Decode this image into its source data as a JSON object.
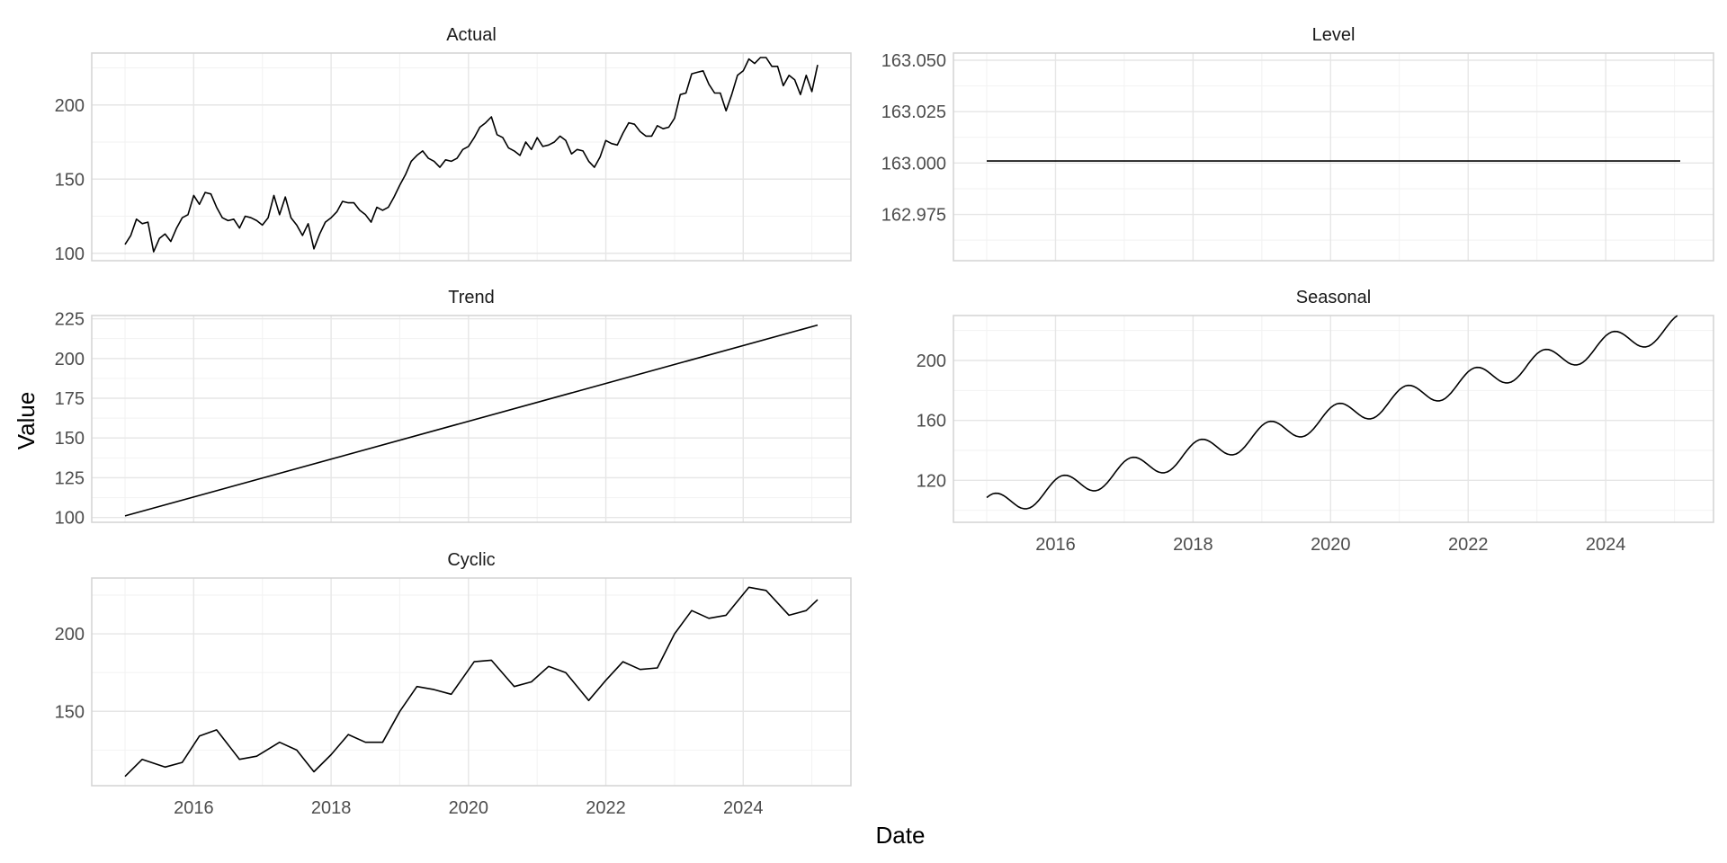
{
  "chart_data": {
    "type": "line",
    "layout": "facet_wrap",
    "xlabel": "Date",
    "ylabel": "Value",
    "x_tick_labels": [
      "2016",
      "2018",
      "2020",
      "2022",
      "2024"
    ],
    "grid": true,
    "panels": [
      {
        "title": "Actual",
        "y_ticks": [
          100,
          150,
          200
        ],
        "ylim": [
          95,
          235
        ],
        "points": [
          [
            "2015-01",
            106
          ],
          [
            "2015-02",
            112
          ],
          [
            "2015-03",
            123
          ],
          [
            "2015-04",
            120
          ],
          [
            "2015-05",
            121
          ],
          [
            "2015-06",
            101
          ],
          [
            "2015-07",
            110
          ],
          [
            "2015-08",
            113
          ],
          [
            "2015-09",
            108
          ],
          [
            "2015-10",
            117
          ],
          [
            "2015-11",
            124
          ],
          [
            "2015-12",
            126
          ],
          [
            "2016-01",
            139
          ],
          [
            "2016-02",
            133
          ],
          [
            "2016-03",
            141
          ],
          [
            "2016-04",
            140
          ],
          [
            "2016-05",
            131
          ],
          [
            "2016-06",
            124
          ],
          [
            "2016-07",
            122
          ],
          [
            "2016-08",
            123
          ],
          [
            "2016-09",
            117
          ],
          [
            "2016-10",
            125
          ],
          [
            "2016-11",
            124
          ],
          [
            "2016-12",
            122
          ],
          [
            "2017-01",
            119
          ],
          [
            "2017-02",
            124
          ],
          [
            "2017-03",
            139
          ],
          [
            "2017-04",
            126
          ],
          [
            "2017-05",
            138
          ],
          [
            "2017-06",
            124
          ],
          [
            "2017-07",
            119
          ],
          [
            "2017-08",
            112
          ],
          [
            "2017-09",
            120
          ],
          [
            "2017-10",
            103
          ],
          [
            "2017-11",
            113
          ],
          [
            "2017-12",
            121
          ],
          [
            "2018-01",
            124
          ],
          [
            "2018-02",
            128
          ],
          [
            "2018-03",
            135
          ],
          [
            "2018-04",
            134
          ],
          [
            "2018-05",
            134
          ],
          [
            "2018-06",
            129
          ],
          [
            "2018-07",
            126
          ],
          [
            "2018-08",
            121
          ],
          [
            "2018-09",
            131
          ],
          [
            "2018-10",
            129
          ],
          [
            "2018-11",
            131
          ],
          [
            "2018-12",
            138
          ],
          [
            "2019-01",
            146
          ],
          [
            "2019-02",
            153
          ],
          [
            "2019-03",
            162
          ],
          [
            "2019-04",
            166
          ],
          [
            "2019-05",
            169
          ],
          [
            "2019-06",
            164
          ],
          [
            "2019-07",
            162
          ],
          [
            "2019-08",
            158
          ],
          [
            "2019-09",
            163
          ],
          [
            "2019-10",
            162
          ],
          [
            "2019-11",
            164
          ],
          [
            "2019-12",
            170
          ],
          [
            "2020-01",
            172
          ],
          [
            "2020-02",
            178
          ],
          [
            "2020-03",
            185
          ],
          [
            "2020-04",
            188
          ],
          [
            "2020-05",
            192
          ],
          [
            "2020-06",
            180
          ],
          [
            "2020-07",
            178
          ],
          [
            "2020-08",
            171
          ],
          [
            "2020-09",
            169
          ],
          [
            "2020-10",
            166
          ],
          [
            "2020-11",
            175
          ],
          [
            "2020-12",
            170
          ],
          [
            "2021-01",
            178
          ],
          [
            "2021-02",
            172
          ],
          [
            "2021-03",
            173
          ],
          [
            "2021-04",
            175
          ],
          [
            "2021-05",
            179
          ],
          [
            "2021-06",
            176
          ],
          [
            "2021-07",
            167
          ],
          [
            "2021-08",
            170
          ],
          [
            "2021-09",
            169
          ],
          [
            "2021-10",
            162
          ],
          [
            "2021-11",
            158
          ],
          [
            "2021-12",
            165
          ],
          [
            "2022-01",
            176
          ],
          [
            "2022-02",
            174
          ],
          [
            "2022-03",
            173
          ],
          [
            "2022-04",
            181
          ],
          [
            "2022-05",
            188
          ],
          [
            "2022-06",
            187
          ],
          [
            "2022-07",
            182
          ],
          [
            "2022-08",
            179
          ],
          [
            "2022-09",
            179
          ],
          [
            "2022-10",
            186
          ],
          [
            "2022-11",
            184
          ],
          [
            "2022-12",
            185
          ],
          [
            "2023-01",
            191
          ],
          [
            "2023-02",
            207
          ],
          [
            "2023-03",
            208
          ],
          [
            "2023-04",
            221
          ],
          [
            "2023-05",
            222
          ],
          [
            "2023-06",
            223
          ],
          [
            "2023-07",
            214
          ],
          [
            "2023-08",
            208
          ],
          [
            "2023-09",
            208
          ],
          [
            "2023-10",
            196
          ],
          [
            "2023-11",
            207
          ],
          [
            "2023-12",
            220
          ],
          [
            "2024-01",
            223
          ],
          [
            "2024-02",
            231
          ],
          [
            "2024-03",
            228
          ],
          [
            "2024-04",
            232
          ],
          [
            "2024-05",
            232
          ],
          [
            "2024-06",
            226
          ],
          [
            "2024-07",
            226
          ],
          [
            "2024-08",
            213
          ],
          [
            "2024-09",
            220
          ],
          [
            "2024-10",
            217
          ],
          [
            "2024-11",
            207
          ],
          [
            "2024-12",
            220
          ],
          [
            "2025-01",
            209
          ],
          [
            "2025-02",
            227
          ]
        ]
      },
      {
        "title": "Level",
        "y_ticks": [
          162.975,
          163.0,
          163.025,
          163.05
        ],
        "y_tick_labels": [
          "162.975",
          "163.000",
          "163.025",
          "163.050"
        ],
        "ylim": [
          162.9525,
          163.0535
        ],
        "points": [
          [
            "2015-01",
            163.001
          ],
          [
            "2025-02",
            163.001
          ]
        ]
      },
      {
        "title": "Trend",
        "y_ticks": [
          100,
          125,
          150,
          175,
          200,
          225
        ],
        "ylim": [
          97,
          227
        ],
        "points": [
          [
            "2015-01",
            101
          ],
          [
            "2025-02",
            221
          ]
        ]
      },
      {
        "title": "Seasonal",
        "y_ticks": [
          120,
          160,
          200
        ],
        "ylim": [
          92,
          230
        ],
        "generator": {
          "base": 102,
          "slope_per_year": 12,
          "amplitude": 8,
          "phase_offset": 0.15,
          "decimals": 1
        }
      },
      {
        "title": "Cyclic",
        "y_ticks": [
          150,
          200
        ],
        "ylim": [
          102,
          236
        ],
        "points": [
          [
            "2015-01",
            108
          ],
          [
            "2015-04",
            119
          ],
          [
            "2015-08",
            114
          ],
          [
            "2015-11",
            117
          ],
          [
            "2016-02",
            134
          ],
          [
            "2016-05",
            138
          ],
          [
            "2016-09",
            119
          ],
          [
            "2016-12",
            121
          ],
          [
            "2017-04",
            130
          ],
          [
            "2017-07",
            125
          ],
          [
            "2017-10",
            111
          ],
          [
            "2018-01",
            122
          ],
          [
            "2018-04",
            135
          ],
          [
            "2018-07",
            130
          ],
          [
            "2018-10",
            130
          ],
          [
            "2019-01",
            150
          ],
          [
            "2019-04",
            166
          ],
          [
            "2019-07",
            164
          ],
          [
            "2019-10",
            161
          ],
          [
            "2020-02",
            182
          ],
          [
            "2020-05",
            183
          ],
          [
            "2020-09",
            166
          ],
          [
            "2020-12",
            169
          ],
          [
            "2021-03",
            179
          ],
          [
            "2021-06",
            175
          ],
          [
            "2021-10",
            157
          ],
          [
            "2022-01",
            170
          ],
          [
            "2022-04",
            182
          ],
          [
            "2022-07",
            177
          ],
          [
            "2022-10",
            178
          ],
          [
            "2023-01",
            200
          ],
          [
            "2023-04",
            215
          ],
          [
            "2023-07",
            210
          ],
          [
            "2023-10",
            212
          ],
          [
            "2024-02",
            230
          ],
          [
            "2024-05",
            228
          ],
          [
            "2024-09",
            212
          ],
          [
            "2024-12",
            215
          ],
          [
            "2025-02",
            222
          ]
        ]
      }
    ]
  }
}
